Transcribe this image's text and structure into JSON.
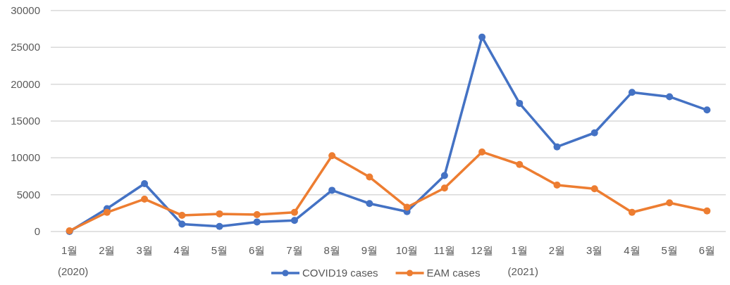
{
  "chart_data": {
    "type": "line",
    "categories": [
      "1월",
      "2월",
      "3월",
      "4월",
      "5월",
      "6월",
      "7월",
      "8월",
      "9월",
      "10월",
      "11월",
      "12월",
      "1월",
      "2월",
      "3월",
      "4월",
      "5월",
      "6월"
    ],
    "series": [
      {
        "name": "COVID19 cases",
        "color": "#4472c4",
        "values": [
          0,
          3100,
          6500,
          1000,
          700,
          1300,
          1500,
          5600,
          3800,
          2700,
          7600,
          26400,
          17400,
          11500,
          13400,
          18900,
          18300,
          16500
        ]
      },
      {
        "name": "EAM cases",
        "color": "#ed7d31",
        "values": [
          100,
          2600,
          4400,
          2200,
          2400,
          2300,
          2600,
          10300,
          7400,
          3300,
          5900,
          10800,
          9100,
          6300,
          5800,
          2600,
          3900,
          2800
        ]
      }
    ],
    "ylim": [
      0,
      30000
    ],
    "yticks": [
      0,
      5000,
      10000,
      15000,
      20000,
      25000,
      30000
    ],
    "grid": "y",
    "legend": "bottom",
    "marker": "circle",
    "line_style": "solid",
    "annotations": [
      "(2020)",
      "(2021)"
    ]
  }
}
